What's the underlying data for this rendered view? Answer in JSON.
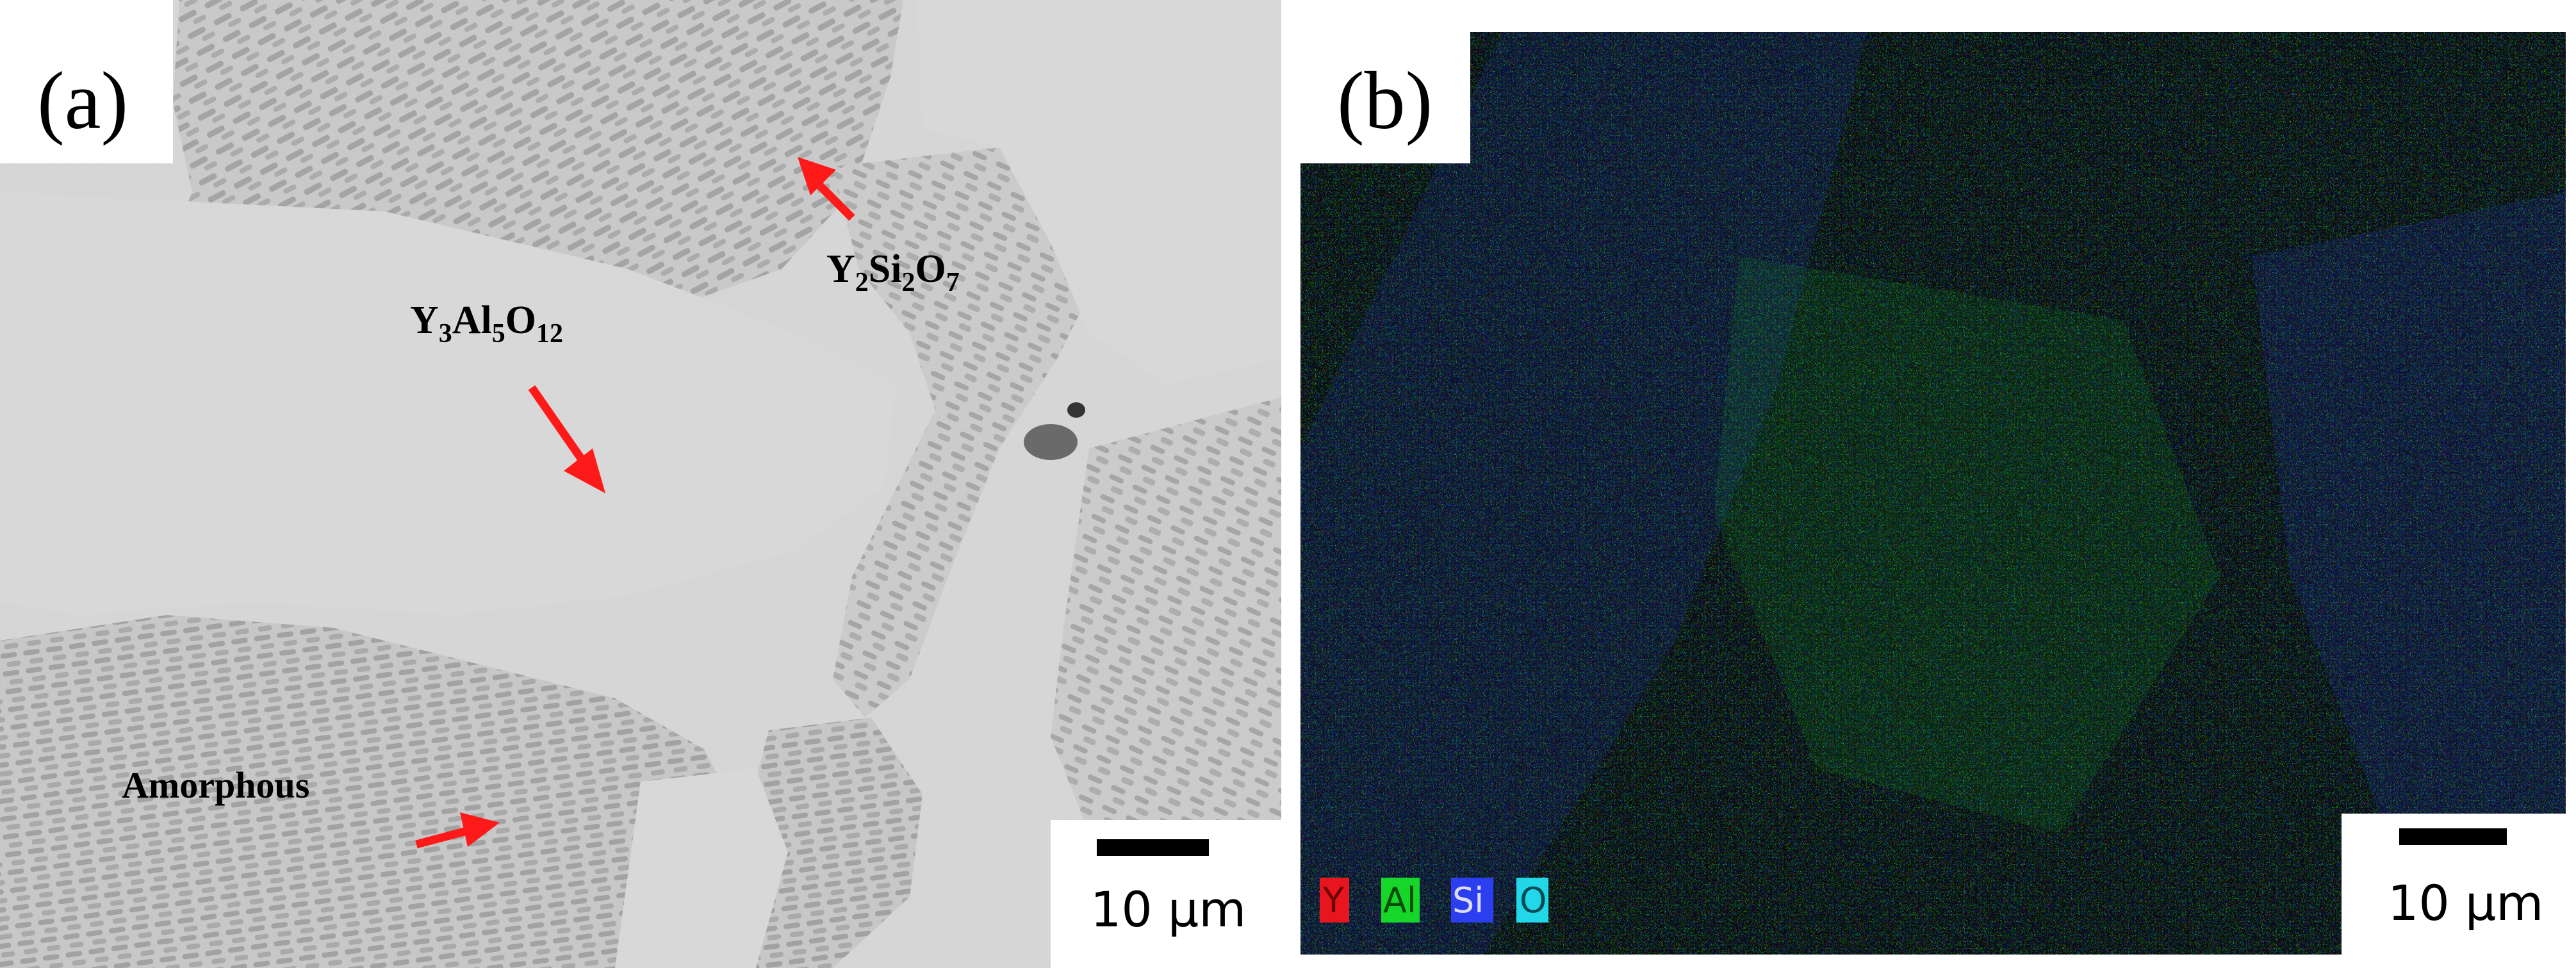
{
  "panel_a": {
    "label": "(a)",
    "phases": {
      "yag": {
        "base": "Y",
        "sub1": "3",
        "mid": "Al",
        "sub2": "5",
        "end": "O",
        "sub3": "12"
      },
      "ys": {
        "base": "Y",
        "sub1": "2",
        "mid": "Si",
        "sub2": "2",
        "end": "O",
        "sub3": "7"
      },
      "amorphous": "Amorphous"
    },
    "scale_bar": "10 μm"
  },
  "panel_b": {
    "label": "(b)",
    "scale_bar": "10 μm",
    "legend": [
      {
        "symbol": "Y",
        "color": "#e8141e"
      },
      {
        "symbol": "Al",
        "color": "#16d62a"
      },
      {
        "symbol": "Si",
        "color": "#2b3ef0"
      },
      {
        "symbol": "O",
        "color": "#22d8e8"
      }
    ]
  },
  "colors": {
    "arrow": "#ff1a1a",
    "matrix": "#d3d3d3",
    "eutectic": "#a3a3a3",
    "map_background": "#101018"
  }
}
